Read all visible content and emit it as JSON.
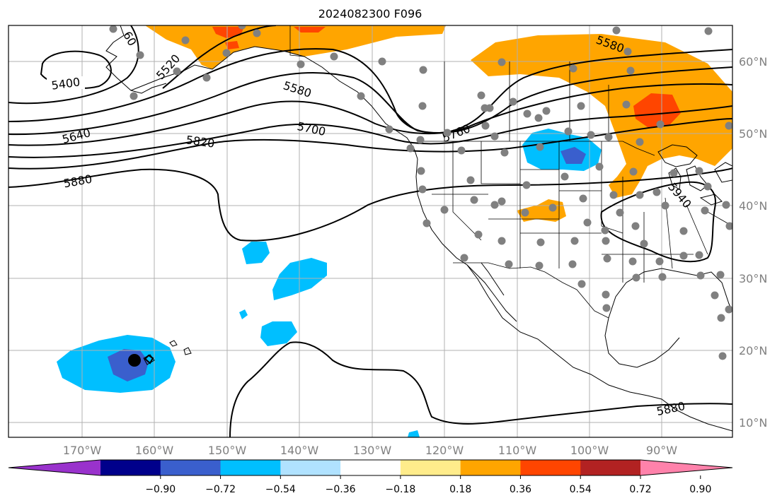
{
  "title": "2024082300 F096",
  "lon_ticks": [
    "170°W",
    "160°W",
    "150°W",
    "140°W",
    "130°W",
    "120°W",
    "110°W",
    "100°W",
    "90°W"
  ],
  "lat_ticks": [
    "60°N",
    "50°N",
    "40°N",
    "30°N",
    "20°N",
    "10°N"
  ],
  "colorbar": {
    "colors": [
      "#9932cc",
      "#00008b",
      "#3a5fcd",
      "#00bfff",
      "#b0e2ff",
      "#ffffff",
      "#ffec8b",
      "#ffa500",
      "#ff4500",
      "#b22222",
      "#ff82ab"
    ],
    "ticks": [
      "−0.90",
      "−0.72",
      "−0.54",
      "−0.36",
      "−0.18",
      "0.18",
      "0.36",
      "0.54",
      "0.72",
      "0.90"
    ]
  },
  "contour_labels": [
    "5400",
    "5520",
    "60",
    "5580",
    "5640",
    "5700",
    "5760",
    "5820",
    "5880",
    "5580",
    "5940",
    "5880"
  ],
  "colors": {
    "orange": "#ffa500",
    "red_orange": "#ff4500",
    "deep_sky_blue": "#00bfff",
    "royal_blue": "#3a5fcd",
    "station_gray": "#808080"
  }
}
